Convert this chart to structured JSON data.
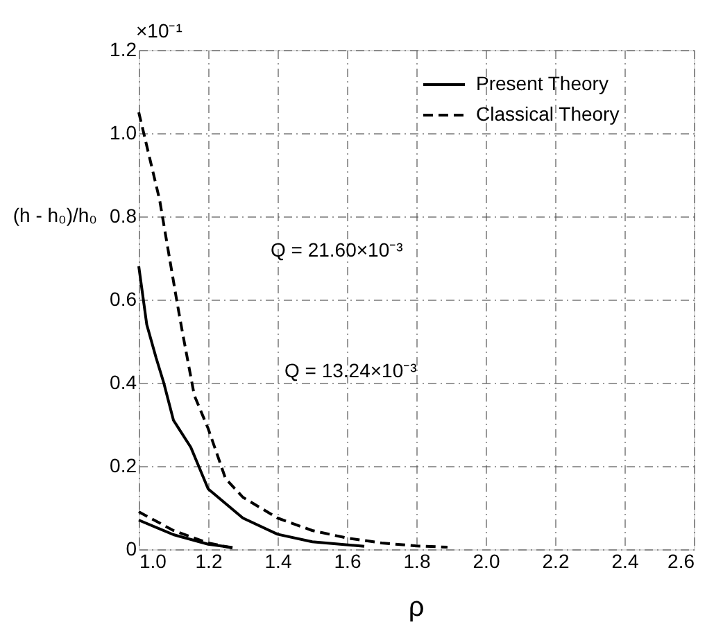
{
  "chart_data": {
    "type": "line",
    "xlabel": "ρ",
    "ylabel": "(h - h₀)/h₀",
    "xlim": [
      1.0,
      2.6
    ],
    "xticks": [
      {
        "value": 1.0,
        "label": "1.0"
      },
      1.2,
      1.4,
      1.6,
      1.8,
      {
        "value": 2.0,
        "label": "2.0"
      },
      2.2,
      2.4,
      2.6
    ],
    "ylim": [
      0,
      1.2
    ],
    "yticks": [
      0,
      0.2,
      0.4,
      0.6,
      0.8,
      {
        "value": 1.0,
        "label": "1.0"
      },
      1.2
    ],
    "grid": true,
    "legend": "top right",
    "marker": "none",
    "annotations": [
      "×10⁻¹",
      "Q = 21.60×10⁻³",
      "Q = 13.24×10⁻³"
    ],
    "series": [
      {
        "name": "Present Theory",
        "color": "#000000",
        "line_style": "solid",
        "x": [
          1.0,
          1.023,
          1.05,
          1.072,
          1.1,
          1.15,
          1.2,
          1.3,
          1.4,
          1.5,
          1.65
        ],
        "values": [
          0.68,
          0.54,
          0.46,
          0.4,
          0.31,
          0.245,
          0.145,
          0.075,
          0.036,
          0.018,
          0.007
        ]
      },
      {
        "name": "Classical Theory",
        "color": "#000000",
        "line_style": "dashed",
        "x": [
          1.0,
          1.06,
          1.109,
          1.124,
          1.16,
          1.2,
          1.25,
          1.3,
          1.4,
          1.5,
          1.6,
          1.7,
          1.8,
          1.89
        ],
        "values": [
          1.05,
          0.84,
          0.6,
          0.53,
          0.37,
          0.29,
          0.17,
          0.125,
          0.075,
          0.045,
          0.027,
          0.015,
          0.008,
          0.005
        ]
      },
      {
        "color": "#000000",
        "line_style": "solid",
        "x": [
          1.0,
          1.1,
          1.2,
          1.27
        ],
        "values": [
          0.07,
          0.035,
          0.012,
          0.004
        ]
      },
      {
        "color": "#000000",
        "line_style": "dashed",
        "x": [
          1.0,
          1.1,
          1.2,
          1.27
        ],
        "values": [
          0.09,
          0.045,
          0.015,
          0.003
        ]
      }
    ]
  }
}
